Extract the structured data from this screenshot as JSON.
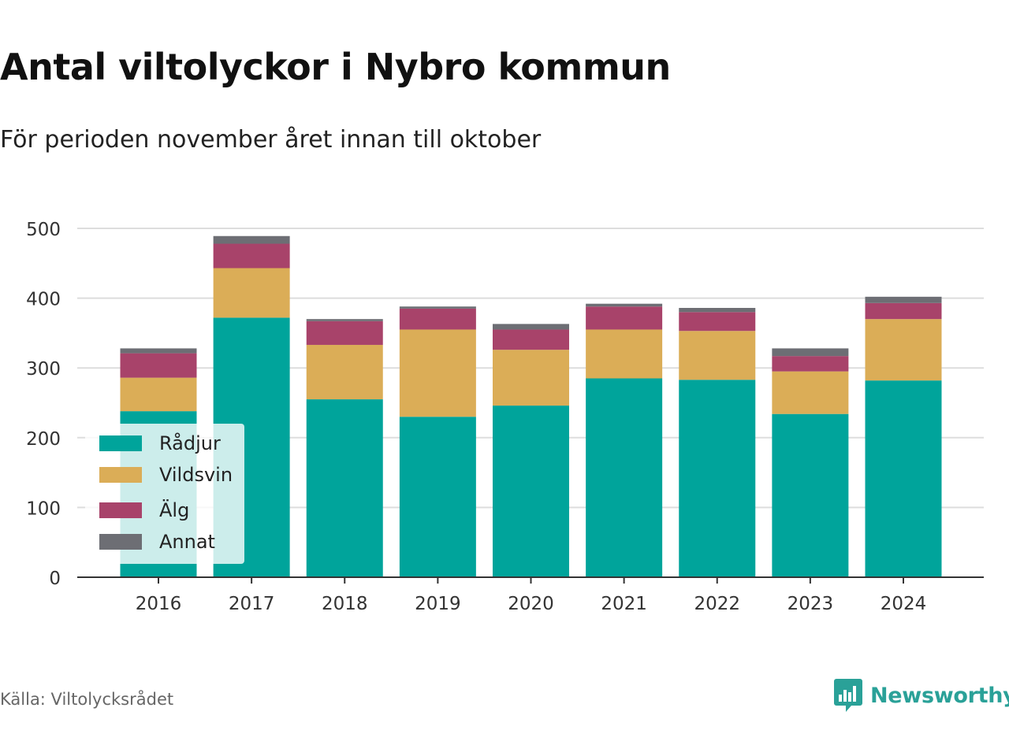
{
  "header": {
    "title": "Antal viltolyckor i Nybro kommun",
    "subtitle": "För perioden november året innan till oktober"
  },
  "footer": {
    "source": "Källa: Viltolycksrådet",
    "brand": "Newsworthy",
    "brand_icon": "bar-chart-speech-bubble-icon",
    "brand_color": "#2aa198"
  },
  "colors": {
    "Rådjur": "#00a49b",
    "Vildsvin": "#dbad57",
    "Älg": "#a8436a",
    "Annat": "#6d6e74",
    "grid": "#dddddd",
    "axis": "#333333"
  },
  "legend": {
    "placement": "bottom-left inside plot",
    "items": [
      "Rådjur",
      "Vildsvin",
      "Älg",
      "Annat"
    ]
  },
  "chart_data": {
    "type": "bar",
    "stacked": true,
    "categories": [
      "2016",
      "2017",
      "2018",
      "2019",
      "2020",
      "2021",
      "2022",
      "2023",
      "2024"
    ],
    "series": [
      {
        "name": "Rådjur",
        "values": [
          238,
          372,
          255,
          230,
          246,
          285,
          283,
          234,
          282
        ]
      },
      {
        "name": "Vildsvin",
        "values": [
          48,
          71,
          78,
          125,
          80,
          70,
          70,
          61,
          88
        ]
      },
      {
        "name": "Älg",
        "values": [
          35,
          35,
          34,
          30,
          29,
          33,
          27,
          22,
          23
        ]
      },
      {
        "name": "Annat",
        "values": [
          7,
          11,
          3,
          3,
          8,
          4,
          6,
          11,
          9
        ]
      }
    ],
    "title": "Antal viltolyckor i Nybro kommun",
    "subtitle": "För perioden november året innan till oktober",
    "xlabel": "",
    "ylabel": "",
    "ylim": [
      0,
      500
    ],
    "yticks": [
      0,
      100,
      200,
      300,
      400,
      500
    ],
    "grid": true,
    "legend_placement": "bottom-left"
  }
}
